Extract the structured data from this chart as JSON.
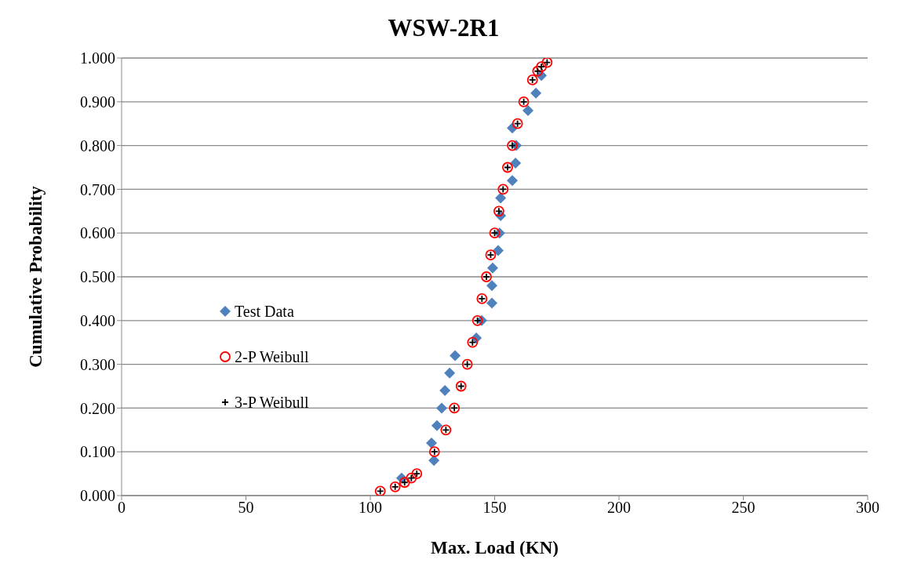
{
  "chart_data": {
    "type": "scatter",
    "title": "WSW-2R1",
    "xlabel": "Max. Load (KN)",
    "ylabel": "Cumulative Probability",
    "xlim": [
      0,
      300
    ],
    "xticks": [
      0,
      50,
      100,
      150,
      200,
      250,
      300
    ],
    "ylim": [
      0,
      1
    ],
    "yticks": [
      {
        "value": 0,
        "label": "0.000"
      },
      {
        "value": 0.1,
        "label": "0.100"
      },
      {
        "value": 0.2,
        "label": "0.200"
      },
      {
        "value": 0.3,
        "label": "0.300"
      },
      {
        "value": 0.4,
        "label": "0.400"
      },
      {
        "value": 0.5,
        "label": "0.500"
      },
      {
        "value": 0.6,
        "label": "0.600"
      },
      {
        "value": 0.7,
        "label": "0.700"
      },
      {
        "value": 0.8,
        "label": "0.800"
      },
      {
        "value": 0.9,
        "label": "0.900"
      },
      {
        "value": 1,
        "label": "1.000"
      }
    ],
    "grid": "y",
    "legend": "left",
    "series": [
      {
        "name": "Test Data",
        "color": "#4f81bd",
        "marker": "diamond",
        "x": [
          112.6,
          125.6,
          124.6,
          126.8,
          128.7,
          130.0,
          131.9,
          134.1,
          142.6,
          144.8,
          148.9,
          148.9,
          149.2,
          151.4,
          152.0,
          152.4,
          152.4,
          157.1,
          158.4,
          158.7,
          157.1,
          163.4,
          166.6,
          168.8
        ],
        "values": [
          0.04,
          0.08,
          0.12,
          0.16,
          0.2,
          0.24,
          0.28,
          0.32,
          0.36,
          0.4,
          0.44,
          0.48,
          0.52,
          0.56,
          0.6,
          0.64,
          0.68,
          0.72,
          0.76,
          0.8,
          0.84,
          0.88,
          0.92,
          0.96
        ]
      },
      {
        "name": "2-P Weibull",
        "color": "#ff0000",
        "marker": "circle",
        "x": [
          104.0,
          110.0,
          113.8,
          116.5,
          118.7,
          125.8,
          130.4,
          133.8,
          136.5,
          139.0,
          141.1,
          143.1,
          144.9,
          146.7,
          148.4,
          150.0,
          151.7,
          153.4,
          155.2,
          157.1,
          159.2,
          161.7,
          165.2,
          167.3,
          168.8,
          171.1
        ],
        "values": [
          0.01,
          0.02,
          0.03,
          0.04,
          0.05,
          0.1,
          0.15,
          0.2,
          0.25,
          0.3,
          0.35,
          0.4,
          0.45,
          0.5,
          0.55,
          0.6,
          0.65,
          0.7,
          0.75,
          0.8,
          0.85,
          0.9,
          0.95,
          0.97,
          0.98,
          0.99
        ]
      },
      {
        "name": "3-P Weibull",
        "color": "#000000",
        "marker": "cross",
        "x": [
          104.0,
          110.0,
          113.8,
          116.5,
          118.7,
          125.8,
          130.4,
          133.8,
          136.5,
          139.0,
          141.1,
          143.1,
          144.9,
          146.7,
          148.4,
          150.0,
          151.7,
          153.4,
          155.2,
          157.1,
          159.2,
          161.7,
          165.2,
          167.3,
          168.8,
          171.1
        ],
        "values": [
          0.01,
          0.02,
          0.03,
          0.04,
          0.05,
          0.1,
          0.15,
          0.2,
          0.25,
          0.3,
          0.35,
          0.4,
          0.45,
          0.5,
          0.55,
          0.6,
          0.65,
          0.7,
          0.75,
          0.8,
          0.85,
          0.9,
          0.95,
          0.97,
          0.98,
          0.99
        ]
      }
    ]
  }
}
